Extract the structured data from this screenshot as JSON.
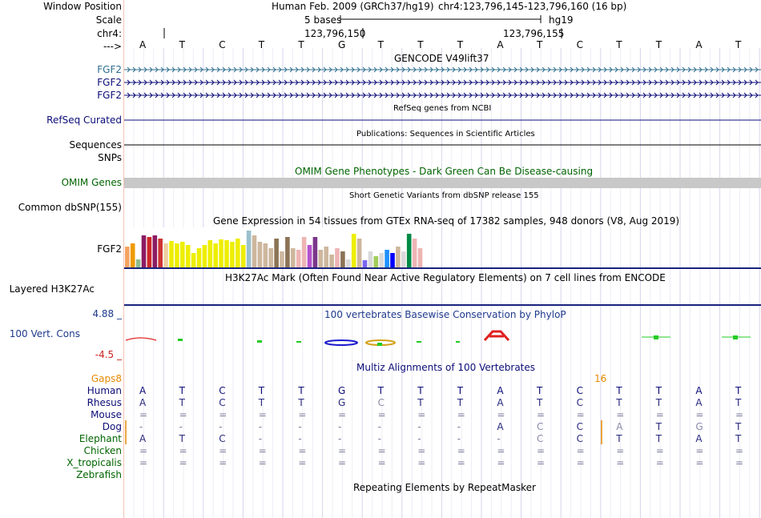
{
  "labels": {
    "window_position": "Window Position",
    "scale": "Scale",
    "chrom": "chr4:",
    "arrow": "--->",
    "fgf2_a": "FGF2",
    "fgf2_b": "FGF2",
    "fgf2_c": "FGF2",
    "refseq": "RefSeq Curated",
    "sequences": "Sequences",
    "snps": "SNPs",
    "omim": "OMIM Genes",
    "common_dbsnp": "Common dbSNP(155)",
    "gtex_gene": "FGF2",
    "h3k27ac": "Layered H3K27Ac",
    "cons_max": "4.88 _",
    "cons_track": "100 Vert. Cons",
    "cons_min": "-4.5 _"
  },
  "header": {
    "assembly": "Human Feb. 2009 (GRCh37/hg19)",
    "position": "chr4:123,796,145-123,796,160 (16 bp)",
    "scale_label": "5 bases",
    "scale_db": "hg19",
    "coord_1": "123,796,150",
    "coord_2": "123,796,155"
  },
  "bases": [
    "A",
    "T",
    "C",
    "T",
    "T",
    "G",
    "T",
    "T",
    "T",
    "A",
    "T",
    "C",
    "T",
    "T",
    "A",
    "T"
  ],
  "track_titles": {
    "gencode": "GENCODE V49lift37",
    "refseq": "RefSeq genes from NCBI",
    "publications": "Publications: Sequences in Scientific Articles",
    "omim": "OMIM Gene Phenotypes - Dark Green Can Be Disease-causing",
    "dbsnp": "Short Genetic Variants from dbSNP release 155",
    "gtex": "Gene Expression in 54 tissues from GTEx RNA-seq of 17382 samples, 948 donors (V8, Aug 2019)",
    "h3k27ac": "H3K27Ac Mark (Often Found Near Active Regulatory Elements) on 7 cell lines from ENCODE",
    "phylop": "100 vertebrates Basewise Conservation by PhyloP",
    "multiz": "Multiz Alignments of 100 Vertebrates",
    "repeatmasker": "Repeating Elements by RepeatMasker"
  },
  "multiz": {
    "gaps_label": "Gaps",
    "gaps_count": "8",
    "gap_16": "16",
    "species": [
      {
        "name": "Human",
        "seq": [
          "A",
          "T",
          "C",
          "T",
          "T",
          "G",
          "T",
          "T",
          "T",
          "A",
          "T",
          "C",
          "T",
          "T",
          "A",
          "T"
        ]
      },
      {
        "name": "Rhesus",
        "seq": [
          "A",
          "T",
          "C",
          "T",
          "T",
          "G",
          "C",
          "T",
          "T",
          "A",
          "T",
          "C",
          "T",
          "T",
          "A",
          "T"
        ]
      },
      {
        "name": "Mouse",
        "seq": [
          "=",
          "=",
          "=",
          "=",
          "=",
          "=",
          "=",
          "=",
          "=",
          "=",
          "=",
          "=",
          "=",
          "=",
          "=",
          "="
        ]
      },
      {
        "name": "Dog",
        "seq": [
          "-",
          "-",
          "-",
          "-",
          "-",
          "-",
          "-",
          "-",
          "-",
          "A",
          "C",
          "C",
          "A",
          "T",
          "G",
          "T"
        ]
      },
      {
        "name": "Elephant",
        "seq": [
          "A",
          "T",
          "C",
          "-",
          "-",
          "-",
          "-",
          "-",
          "-",
          "-",
          "C",
          "C",
          "T",
          "T",
          "A",
          "T"
        ]
      },
      {
        "name": "Chicken",
        "seq": [
          "=",
          "=",
          "=",
          "=",
          "=",
          "=",
          "=",
          "=",
          "=",
          "=",
          "=",
          "=",
          "=",
          "=",
          "=",
          "="
        ]
      },
      {
        "name": "X_tropicalis",
        "seq": [
          "=",
          "=",
          "=",
          "=",
          "=",
          "=",
          "=",
          "=",
          "=",
          "=",
          "=",
          "=",
          "=",
          "=",
          "=",
          "="
        ]
      },
      {
        "name": "Zebrafish",
        "seq": [
          "",
          "",
          "",
          "",
          "",
          "",
          "",
          "",
          "",
          "",
          "",
          "",
          "",
          "",
          "",
          ""
        ]
      }
    ],
    "dim_cells": [
      [
        1,
        6
      ],
      [
        3,
        10
      ],
      [
        3,
        12
      ],
      [
        3,
        14
      ],
      [
        4,
        10
      ]
    ]
  },
  "chart_data": {
    "type": "bar",
    "title": "Gene Expression in 54 tissues from GTEx RNA-seq of 17382 samples, 948 donors (V8, Aug 2019)",
    "gene": "FGF2",
    "xlabel": "",
    "ylabel": "",
    "values": [
      26,
      30,
      10,
      40,
      38,
      40,
      36,
      30,
      33,
      30,
      32,
      28,
      18,
      24,
      28,
      34,
      30,
      35,
      34,
      32,
      36,
      28,
      46,
      40,
      32,
      30,
      24,
      36,
      20,
      38,
      24,
      22,
      38,
      28,
      38,
      22,
      26,
      16,
      24,
      20,
      10,
      42,
      36,
      9,
      20,
      14,
      18,
      22,
      18,
      26,
      20,
      42,
      36,
      24
    ],
    "colors": [
      "#f4a460",
      "#ee9a00",
      "#8fbc8f",
      "#8b1c62",
      "#cd2626",
      "#8b1c62",
      "#cd3333",
      "#eecfa1",
      "#eeee00",
      "#eeee00",
      "#eeee00",
      "#eeee00",
      "#eeee00",
      "#eeee00",
      "#eeee00",
      "#eeee00",
      "#eeee00",
      "#eeee00",
      "#eeee00",
      "#eeee00",
      "#eeee00",
      "#eeee00",
      "#9ac0cd",
      "#cdb79e",
      "#cdb79e",
      "#cdb79e",
      "#cdb79e",
      "#8b7355",
      "#cdb79e",
      "#8b7355",
      "#cdb79e",
      "#eeb4b4",
      "#eeb4b4",
      "#b452cd",
      "#7a378b",
      "#cdb79e",
      "#cdb79e",
      "#cdb79e",
      "#eeb4b4",
      "#8b7355",
      "#d9d9d9",
      "#eeee00",
      "#cdb79e",
      "#7a67ee",
      "#d9d9d9",
      "#a2cd5a",
      "#d9d9d9",
      "#1e90ff",
      "#0000ff",
      "#cdb79e",
      "#d9d9d9",
      "#008b45",
      "#eeb4b4",
      "#eeb4b4"
    ]
  },
  "colors": {
    "gencode_gene": "#2e6e8e",
    "refseq": "#0c0c78",
    "omim_label": "#006400",
    "omim_bar": "#c8c8c8",
    "phylop": "#191970",
    "phylop_label": "#1e3a8c",
    "multiz_label": "#0c0c78",
    "gaps": "#e68a00",
    "h3k27ac_line": "#1a237e"
  }
}
